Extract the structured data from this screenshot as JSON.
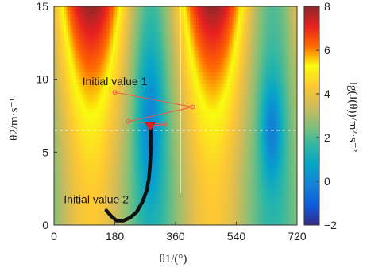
{
  "chart_data": {
    "type": "heatmap",
    "title": "",
    "xlabel": "θ1/(°)",
    "ylabel": "θ2/m·s⁻¹",
    "xlim": [
      0,
      720
    ],
    "ylim": [
      0,
      15
    ],
    "xticks": [
      "0",
      "180",
      "360",
      "540",
      "720"
    ],
    "yticks": [
      "0",
      "5",
      "10",
      "15"
    ],
    "xtick_values": [
      0,
      180,
      360,
      540,
      720
    ],
    "ytick_values": [
      0,
      5,
      10,
      15
    ],
    "colorbar": {
      "label": "lg(J(θ))/m²·s⁻²",
      "range": [
        -2,
        8
      ],
      "ticks": [
        "−2",
        "0",
        "2",
        "4",
        "6",
        "8"
      ],
      "tick_values": [
        -2,
        0,
        2,
        4,
        6,
        8
      ],
      "colormap": "parula",
      "colors": [
        "#352a87",
        "#0f5cdd",
        "#1481d6",
        "#06a4ca",
        "#2eb7a4",
        "#87bf77",
        "#d1bb59",
        "#fec832",
        "#f9fb0e",
        "#ff6a00",
        "#e82020",
        "#8b2a2a"
      ]
    },
    "grid": true,
    "annotations": [
      {
        "text": "Initial value 1",
        "x": 180,
        "y": 9.6
      },
      {
        "text": "Initial value 2",
        "x": 125,
        "y": 1.5
      }
    ],
    "crosshair": {
      "x": 375,
      "y": 6.5
    },
    "optimum": {
      "x": 285,
      "y": 6.8
    },
    "series": [
      {
        "x": [
          180,
          410,
          220,
          330,
          290
        ],
        "y": [
          9.1,
          8.1,
          7.1,
          6.9,
          6.8
        ],
        "color": "#ef5a4a"
      },
      {
        "x": [
          155,
          170,
          185,
          205,
          225,
          245,
          262,
          275,
          281,
          284,
          286,
          287,
          287,
          286,
          285
        ],
        "y": [
          1.0,
          0.6,
          0.3,
          0.3,
          0.5,
          0.9,
          1.6,
          2.4,
          3.2,
          4.0,
          4.8,
          5.5,
          6.0,
          6.5,
          6.8
        ],
        "color": "#111111"
      }
    ]
  }
}
